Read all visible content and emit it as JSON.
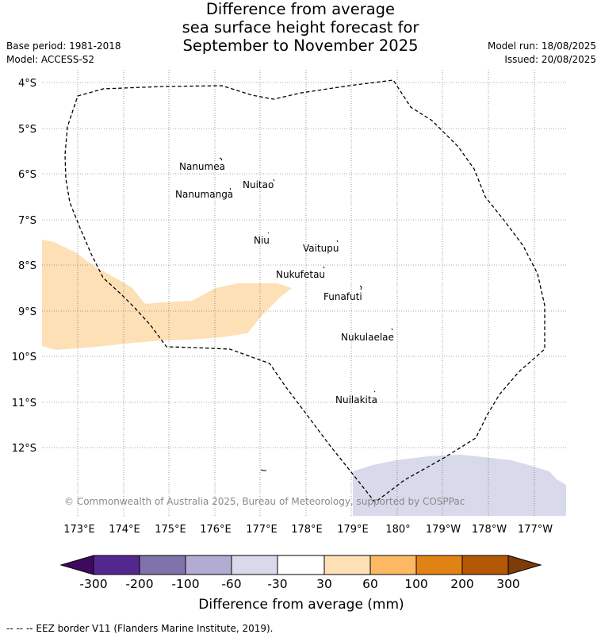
{
  "title": {
    "line1": "Difference from average",
    "line2": "sea surface height forecast for",
    "line3": "September to November 2025"
  },
  "meta": {
    "base_period": "Base period: 1981-2018",
    "model": "Model: ACCESS-S2",
    "model_run": "Model run: 18/08/2025",
    "issued": "Issued: 20/08/2025"
  },
  "map": {
    "lat_labels": [
      "4°S",
      "5°S",
      "6°S",
      "7°S",
      "8°S",
      "9°S",
      "10°S",
      "11°S",
      "12°S"
    ],
    "lon_labels": [
      "173°E",
      "174°E",
      "175°E",
      "176°E",
      "177°E",
      "178°E",
      "179°E",
      "180°",
      "179°W",
      "178°W",
      "177°W"
    ],
    "places": [
      {
        "name": "Nanumea"
      },
      {
        "name": "Nuitao"
      },
      {
        "name": "Nanumanga"
      },
      {
        "name": "Niu"
      },
      {
        "name": "Vaitupu"
      },
      {
        "name": "Nukufetau"
      },
      {
        "name": "Funafuti"
      },
      {
        "name": "Nukulaelae"
      },
      {
        "name": "Nuilakita"
      }
    ],
    "copyright": "© Commonwealth of Australia 2025, Bureau of Meteorology, supported by COSPPac",
    "colors": {
      "positive_30_60": "#fde0b6",
      "negative_30_60": "#d8d9eb",
      "eez_border": "#000000",
      "grid": "#555555"
    }
  },
  "colorbar": {
    "title": "Difference from average (mm)",
    "ticks": [
      "-300",
      "-200",
      "-100",
      "-60",
      "-30",
      "30",
      "60",
      "100",
      "200",
      "300"
    ],
    "colors": [
      "#3f0a5e",
      "#54278f",
      "#8073ac",
      "#b2abd2",
      "#d8d9eb",
      "#ffffff",
      "#fde0b6",
      "#fdb863",
      "#e08214",
      "#b35806",
      "#7f3b08"
    ]
  },
  "footer": "--  --  -- EEZ border V11 (Flanders Marine Institute, 2019)."
}
